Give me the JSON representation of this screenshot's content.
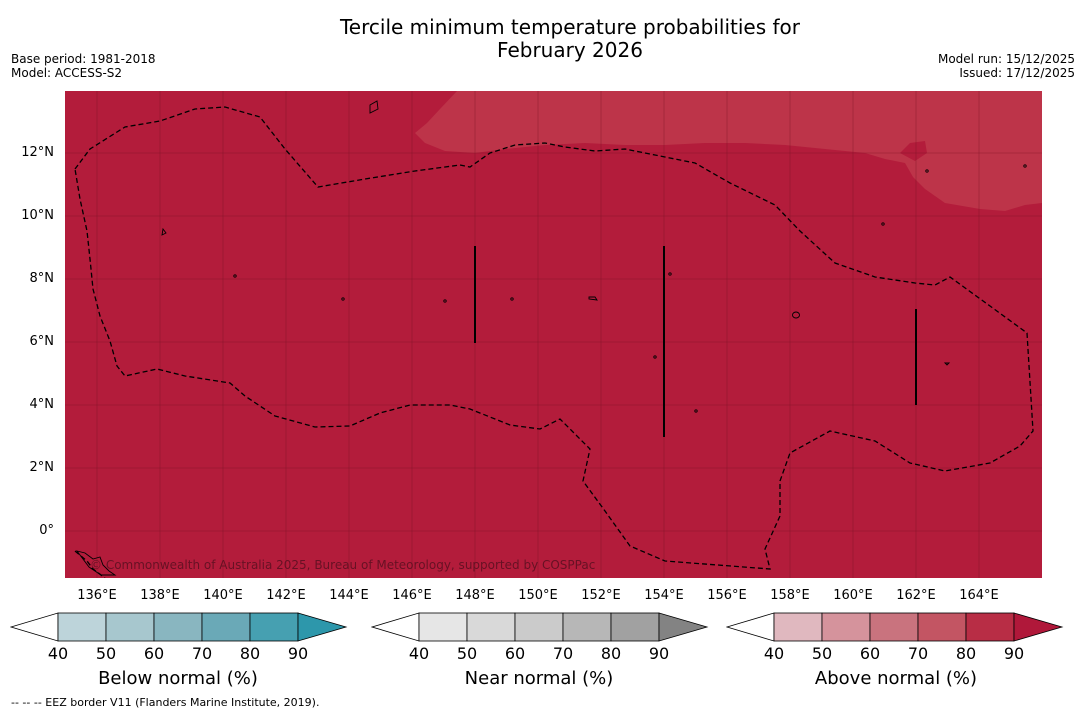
{
  "title": {
    "line1": "Tercile minimum temperature probabilities for",
    "line2": "February 2026"
  },
  "meta_left": {
    "base_period": "Base period: 1981-2018",
    "model": "Model: ACCESS-S2"
  },
  "meta_right": {
    "model_run": "Model run: 15/12/2025",
    "issued": "Issued: 17/12/2025"
  },
  "map": {
    "lat_labels": [
      "12°N",
      "10°N",
      "8°N",
      "6°N",
      "4°N",
      "2°N",
      "0°"
    ],
    "lon_labels": [
      "136°E",
      "138°E",
      "140°E",
      "142°E",
      "144°E",
      "146°E",
      "148°E",
      "150°E",
      "152°E",
      "154°E",
      "156°E",
      "158°E",
      "160°E",
      "162°E",
      "164°E"
    ],
    "credit": "© Commonwealth of Australia 2025, Bureau of Meteorology, supported by COSPPac",
    "colors": {
      "dominant": "#b31c3b",
      "secondary": "#bd3449"
    }
  },
  "colorbars": [
    {
      "title": "Below normal (%)",
      "ticks": [
        "40",
        "50",
        "60",
        "70",
        "80",
        "90"
      ],
      "colors": [
        "#ffffff",
        "#bdd4da",
        "#a7c7ce",
        "#89b6c0",
        "#6aa9b7",
        "#46a0b1",
        "#2d97ab"
      ]
    },
    {
      "title": "Near normal (%)",
      "ticks": [
        "40",
        "50",
        "60",
        "70",
        "80",
        "90"
      ],
      "colors": [
        "#ffffff",
        "#e6e6e6",
        "#d9d9d9",
        "#cbcbcb",
        "#b7b7b7",
        "#a1a1a1",
        "#838383"
      ]
    },
    {
      "title": "Above normal (%)",
      "ticks": [
        "40",
        "50",
        "60",
        "70",
        "80",
        "90"
      ],
      "colors": [
        "#ffffff",
        "#e0b8bf",
        "#d5939c",
        "#c9737e",
        "#c35563",
        "#b82d45",
        "#b0183a"
      ]
    }
  ],
  "footnote": "-- -- -- EEZ border V11 (Flanders Marine Institute, 2019)."
}
